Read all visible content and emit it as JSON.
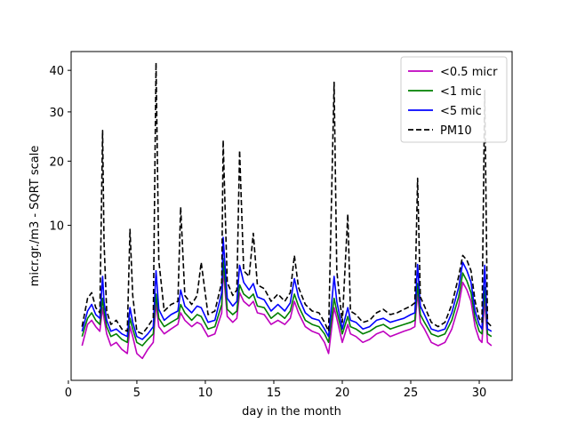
{
  "chart_data": {
    "type": "line",
    "title": "",
    "xlabel": "day in the month",
    "ylabel": "micr.gr./m3 - SQRT scale",
    "xlim": [
      0.2,
      32.4
    ],
    "ylim": [
      0,
      45
    ],
    "y_scale": "sqrt",
    "x_ticks": [
      0,
      5,
      10,
      15,
      20,
      25,
      30
    ],
    "y_ticks": [
      10,
      20,
      30,
      40
    ],
    "legend_position": "top-right",
    "grid": false,
    "series": [
      {
        "name": "<0.5 micr",
        "color": "#bf00bf",
        "dash": "solid",
        "x": [
          1.0,
          1.4,
          1.7,
          2.0,
          2.3,
          2.5,
          2.6,
          2.8,
          3.1,
          3.5,
          3.9,
          4.3,
          4.5,
          4.7,
          5.0,
          5.4,
          5.8,
          6.2,
          6.4,
          6.6,
          7.0,
          7.5,
          8.0,
          8.2,
          8.5,
          9.0,
          9.4,
          9.7,
          10.2,
          10.7,
          11.2,
          11.3,
          11.6,
          12.0,
          12.3,
          12.5,
          12.8,
          13.2,
          13.5,
          13.8,
          14.3,
          14.8,
          15.3,
          15.8,
          16.2,
          16.5,
          16.8,
          17.3,
          17.8,
          18.3,
          18.7,
          19.0,
          19.4,
          19.6,
          20.0,
          20.4,
          20.6,
          21.0,
          21.5,
          22.0,
          22.5,
          23.0,
          23.5,
          24.0,
          24.5,
          25.0,
          25.3,
          25.5,
          25.7,
          26.0,
          26.5,
          27.0,
          27.5,
          28.0,
          28.5,
          28.8,
          29.1,
          29.4,
          29.7,
          30.0,
          30.2,
          30.4,
          30.6,
          30.9
        ],
        "y": [
          0.5,
          1.3,
          1.5,
          1.2,
          1.0,
          2.2,
          1.6,
          0.9,
          0.5,
          0.6,
          0.4,
          0.3,
          1.2,
          0.8,
          0.3,
          0.2,
          0.4,
          0.6,
          2.5,
          1.2,
          0.9,
          1.1,
          1.3,
          1.9,
          1.5,
          1.2,
          1.4,
          1.3,
          0.8,
          0.9,
          1.9,
          5.2,
          1.7,
          1.4,
          1.6,
          3.2,
          2.6,
          2.3,
          2.6,
          1.9,
          1.8,
          1.3,
          1.5,
          1.3,
          1.6,
          2.6,
          1.9,
          1.2,
          1.0,
          0.9,
          0.6,
          0.3,
          2.2,
          1.6,
          0.6,
          1.3,
          0.9,
          0.8,
          0.6,
          0.7,
          0.9,
          1.0,
          0.8,
          0.9,
          1.0,
          1.1,
          1.2,
          3.2,
          1.4,
          1.1,
          0.6,
          0.5,
          0.6,
          1.1,
          2.3,
          4.0,
          3.4,
          2.6,
          1.2,
          0.7,
          0.6,
          2.8,
          0.6,
          0.5
        ]
      },
      {
        "name": "<1 mic",
        "color": "#008000",
        "dash": "solid",
        "x": [
          1.0,
          1.4,
          1.7,
          2.0,
          2.3,
          2.5,
          2.6,
          2.8,
          3.1,
          3.5,
          3.9,
          4.3,
          4.5,
          4.7,
          5.0,
          5.4,
          5.8,
          6.2,
          6.4,
          6.6,
          7.0,
          7.5,
          8.0,
          8.2,
          8.5,
          9.0,
          9.4,
          9.7,
          10.2,
          10.7,
          11.2,
          11.3,
          11.6,
          12.0,
          12.3,
          12.5,
          12.8,
          13.2,
          13.5,
          13.8,
          14.3,
          14.8,
          15.3,
          15.8,
          16.2,
          16.5,
          16.8,
          17.3,
          17.8,
          18.3,
          18.7,
          19.0,
          19.4,
          19.6,
          20.0,
          20.4,
          20.6,
          21.0,
          21.5,
          22.0,
          22.5,
          23.0,
          23.5,
          24.0,
          24.5,
          25.0,
          25.3,
          25.5,
          25.7,
          26.0,
          26.5,
          27.0,
          27.5,
          28.0,
          28.5,
          28.8,
          29.1,
          29.4,
          29.7,
          30.0,
          30.2,
          30.4,
          30.6,
          30.9
        ],
        "y": [
          0.8,
          1.6,
          1.9,
          1.5,
          1.3,
          2.8,
          2.0,
          1.2,
          0.8,
          0.9,
          0.7,
          0.6,
          1.6,
          1.1,
          0.6,
          0.5,
          0.7,
          0.9,
          3.1,
          1.6,
          1.2,
          1.4,
          1.6,
          2.4,
          1.9,
          1.5,
          1.8,
          1.7,
          1.1,
          1.2,
          2.4,
          6.2,
          2.1,
          1.8,
          2.0,
          3.8,
          3.1,
          2.8,
          3.1,
          2.3,
          2.2,
          1.6,
          1.9,
          1.6,
          2.0,
          3.1,
          2.3,
          1.5,
          1.3,
          1.2,
          0.9,
          0.6,
          2.8,
          2.0,
          0.9,
          1.7,
          1.2,
          1.1,
          0.9,
          1.0,
          1.2,
          1.3,
          1.1,
          1.2,
          1.3,
          1.4,
          1.5,
          3.9,
          1.8,
          1.4,
          0.9,
          0.8,
          0.9,
          1.5,
          2.9,
          4.8,
          4.1,
          3.2,
          1.6,
          1.0,
          0.9,
          3.6,
          0.9,
          0.8
        ]
      },
      {
        "name": "<5 mic",
        "color": "#0000ff",
        "dash": "solid",
        "x": [
          1.0,
          1.4,
          1.7,
          2.0,
          2.3,
          2.5,
          2.6,
          2.8,
          3.1,
          3.5,
          3.9,
          4.3,
          4.5,
          4.7,
          5.0,
          5.4,
          5.8,
          6.2,
          6.4,
          6.6,
          7.0,
          7.5,
          8.0,
          8.2,
          8.5,
          9.0,
          9.4,
          9.7,
          10.2,
          10.7,
          11.2,
          11.3,
          11.6,
          12.0,
          12.3,
          12.5,
          12.8,
          13.2,
          13.5,
          13.8,
          14.3,
          14.8,
          15.3,
          15.8,
          16.2,
          16.5,
          16.8,
          17.3,
          17.8,
          18.3,
          18.7,
          19.0,
          19.4,
          19.6,
          20.0,
          20.4,
          20.6,
          21.0,
          21.5,
          22.0,
          22.5,
          23.0,
          23.5,
          24.0,
          24.5,
          25.0,
          25.3,
          25.5,
          25.7,
          26.0,
          26.5,
          27.0,
          27.5,
          28.0,
          28.5,
          28.8,
          29.1,
          29.4,
          29.7,
          30.0,
          30.2,
          30.4,
          30.6,
          30.9
        ],
        "y": [
          1.0,
          2.0,
          2.4,
          1.8,
          1.6,
          4.5,
          2.6,
          1.5,
          1.0,
          1.1,
          0.9,
          0.8,
          2.2,
          1.4,
          0.8,
          0.7,
          0.9,
          1.2,
          5.0,
          2.1,
          1.5,
          1.8,
          2.0,
          3.4,
          2.3,
          1.9,
          2.3,
          2.2,
          1.4,
          1.5,
          3.2,
          8.5,
          2.8,
          2.3,
          2.6,
          5.5,
          4.0,
          3.4,
          3.9,
          2.9,
          2.7,
          2.0,
          2.4,
          2.0,
          2.5,
          4.3,
          2.9,
          1.9,
          1.6,
          1.5,
          1.1,
          0.8,
          4.5,
          2.6,
          1.1,
          2.2,
          1.5,
          1.4,
          1.1,
          1.2,
          1.5,
          1.6,
          1.4,
          1.5,
          1.6,
          1.8,
          1.9,
          5.6,
          2.3,
          1.8,
          1.1,
          1.0,
          1.1,
          1.9,
          3.6,
          5.8,
          5.0,
          4.0,
          2.0,
          1.3,
          1.1,
          5.5,
          1.1,
          1.0
        ]
      },
      {
        "name": "PM10",
        "color": "#000000",
        "dash": "dashed",
        "x": [
          1.0,
          1.4,
          1.7,
          2.0,
          2.3,
          2.5,
          2.6,
          2.8,
          3.1,
          3.5,
          3.9,
          4.3,
          4.5,
          4.7,
          5.0,
          5.4,
          5.8,
          6.2,
          6.4,
          6.6,
          7.0,
          7.5,
          8.0,
          8.2,
          8.5,
          9.0,
          9.4,
          9.7,
          10.2,
          10.7,
          11.2,
          11.3,
          11.6,
          12.0,
          12.3,
          12.5,
          12.8,
          13.2,
          13.5,
          13.8,
          14.3,
          14.8,
          15.3,
          15.8,
          16.2,
          16.5,
          16.8,
          17.3,
          17.8,
          18.3,
          18.7,
          19.0,
          19.4,
          19.6,
          20.0,
          20.4,
          20.6,
          21.0,
          21.5,
          22.0,
          22.5,
          23.0,
          23.5,
          24.0,
          24.5,
          25.0,
          25.3,
          25.5,
          25.7,
          26.0,
          26.5,
          27.0,
          27.5,
          28.0,
          28.5,
          28.8,
          29.1,
          29.4,
          29.7,
          30.0,
          30.2,
          30.4,
          30.6,
          30.9
        ],
        "y": [
          1.2,
          2.8,
          3.2,
          2.2,
          1.9,
          26.0,
          8.0,
          2.0,
          1.3,
          1.5,
          1.1,
          1.0,
          9.5,
          3.0,
          1.0,
          0.9,
          1.2,
          1.6,
          42.0,
          6.0,
          2.0,
          2.4,
          2.6,
          12.5,
          3.0,
          2.4,
          3.0,
          5.8,
          1.8,
          2.0,
          4.0,
          24.0,
          4.0,
          3.0,
          3.4,
          22.0,
          5.0,
          4.5,
          9.0,
          3.8,
          3.5,
          2.6,
          3.1,
          2.6,
          3.2,
          6.5,
          3.6,
          2.4,
          2.0,
          1.9,
          1.4,
          1.0,
          37.0,
          5.0,
          1.4,
          11.5,
          2.0,
          1.8,
          1.4,
          1.5,
          1.9,
          2.1,
          1.8,
          1.9,
          2.1,
          2.3,
          2.5,
          17.0,
          2.9,
          2.3,
          1.4,
          1.2,
          1.4,
          2.4,
          4.5,
          6.5,
          6.0,
          5.0,
          2.6,
          1.6,
          1.4,
          35.0,
          1.4,
          1.2
        ]
      }
    ]
  }
}
